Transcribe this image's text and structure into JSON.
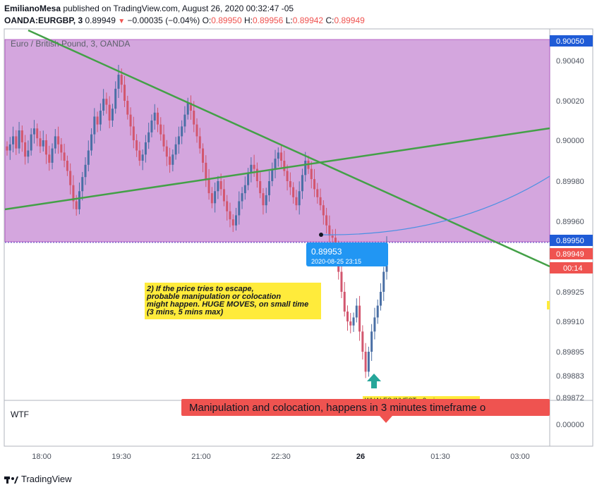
{
  "header": {
    "author": "EmilianoMesa",
    "published_text": "published on TradingView.com, August 26, 2020 00:32:47 -05",
    "symbol": "OANDA:EURGBP, 3",
    "last": "0.89949",
    "change": "−0.00035 (−0.04%)",
    "o_label": "O:",
    "o_value": "0.89950",
    "h_label": "H:",
    "h_value": "0.89956",
    "l_label": "L:",
    "l_value": "0.89942",
    "c_label": "C:",
    "c_value": "0.89949"
  },
  "chart_title": "Euro / British Pound, 3, OANDA",
  "price_labels": {
    "top_badge": "0.90050",
    "current_price": "0.89950",
    "current_price2": "0.89949",
    "countdown": "00:14"
  },
  "tooltip": {
    "price": "0.89953",
    "datetime": "2020-08-25 23:15"
  },
  "annotation": {
    "lines": [
      "2) If the price tries to escape,",
      "probable manipulation or colocation",
      "might happen. HUGE MOVES, on small time",
      "(3 mins, 5 mins max)"
    ]
  },
  "banner": {
    "text": "Manipulation and colocation, happens in 3 minutes timeframe o"
  },
  "partial_label": "WHALES INVEST... 3 min",
  "indicator_pane": {
    "label": "WTF",
    "axis_value": "0.00000"
  },
  "footer": {
    "brand": "TradingView"
  },
  "colors": {
    "zone": "#d4a6de",
    "bull": "#4a6fa5",
    "bear": "#d2566e",
    "trendline": "#43a047",
    "curve": "#4a90e2",
    "badge_blue": "#1f5bd6",
    "badge_red": "#ef5350",
    "tooltip": "#2196f3",
    "note": "#ffeb3b",
    "arrow": "#26a69a"
  },
  "chart_data": {
    "type": "candlestick",
    "symbol": "EURGBP",
    "timeframe": "3",
    "y_ticks": [
      "0.90040",
      "0.90020",
      "0.90000",
      "0.89980",
      "0.89960",
      "0.89925",
      "0.89910",
      "0.89895",
      "0.89883",
      "0.89872"
    ],
    "x_ticks": [
      "18:00",
      "19:30",
      "21:00",
      "22:30",
      "26",
      "01:30",
      "03:00"
    ],
    "ylim": [
      0.89868,
      0.90055
    ],
    "zone": {
      "low": 0.8995,
      "high": 0.9005
    },
    "annotated_price": 0.89953,
    "annotated_time": "2020-08-25 23:15",
    "closes": [
      0.89995,
      0.89998,
      0.90002,
      0.89996,
      0.90005,
      0.89999,
      0.89992,
      0.89995,
      0.90003,
      0.90006,
      0.90001,
      0.89997,
      0.9,
      0.89993,
      0.89989,
      0.89996,
      0.90002,
      0.89998,
      0.89994,
      0.8999,
      0.89985,
      0.89978,
      0.8997,
      0.89966,
      0.89975,
      0.89982,
      0.89988,
      0.89995,
      0.90003,
      0.90012,
      0.90008,
      0.90015,
      0.90021,
      0.90018,
      0.9001,
      0.90016,
      0.90026,
      0.90033,
      0.90028,
      0.9002,
      0.90013,
      0.90007,
      0.9,
      0.89995,
      0.8999,
      0.89993,
      0.89999,
      0.90004,
      0.9001,
      0.90014,
      0.90008,
      0.90003,
      0.89997,
      0.89992,
      0.89988,
      0.89993,
      0.89998,
      0.90002,
      0.90007,
      0.90013,
      0.90019,
      0.90015,
      0.90008,
      0.90002,
      0.89996,
      0.89989,
      0.89981,
      0.89974,
      0.89969,
      0.89975,
      0.8998,
      0.89976,
      0.8997,
      0.89965,
      0.89961,
      0.89958,
      0.89963,
      0.8997,
      0.89974,
      0.89978,
      0.89984,
      0.89988,
      0.89986,
      0.8998,
      0.89974,
      0.89968,
      0.89973,
      0.8998,
      0.89986,
      0.89991,
      0.89994,
      0.8999,
      0.89985,
      0.8998,
      0.89977,
      0.89972,
      0.89968,
      0.89975,
      0.89983,
      0.8999,
      0.89986,
      0.89981,
      0.89976,
      0.89972,
      0.89968,
      0.89963,
      0.89958,
      0.89953,
      0.89952,
      0.89948,
      0.89935,
      0.89925,
      0.89915,
      0.8991,
      0.89908,
      0.89912,
      0.89918,
      0.89905,
      0.89895,
      0.89885,
      0.89895,
      0.89905,
      0.89912,
      0.89918,
      0.89925,
      0.89935,
      0.89949
    ]
  }
}
